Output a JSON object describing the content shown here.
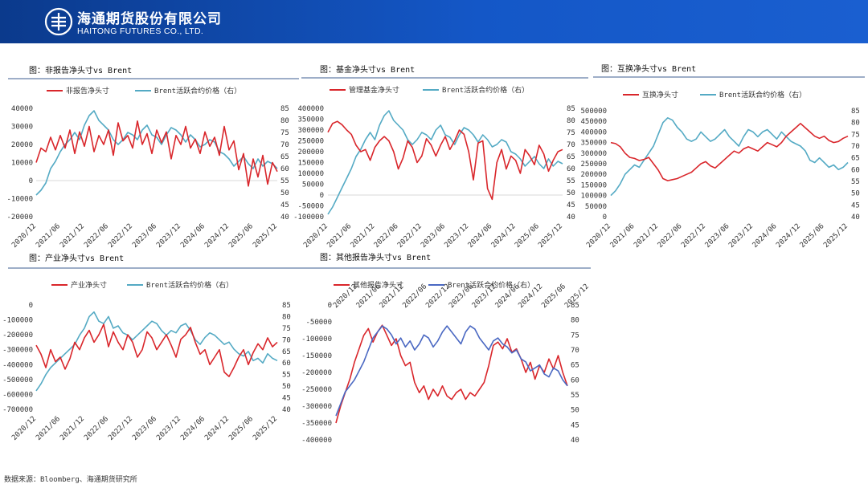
{
  "header": {
    "company_cn": "海通期货股份有限公司",
    "company_en": "HAITONG FUTURES CO., LTD."
  },
  "source_note": "数据来源：Bloomberg、海通期货研究所",
  "colors": {
    "red": "#d9262b",
    "teal": "#54aac4",
    "blue": "#4a68c2",
    "axis": "#999999",
    "divider": "#7f93b6"
  },
  "chart_data": [
    {
      "type": "line",
      "title": "图：非报告净头寸vs Brent",
      "x_ticks": [
        "2020/12",
        "2021/06",
        "2021/12",
        "2022/06",
        "2022/12",
        "2023/06",
        "2023/12",
        "2024/06",
        "2024/12",
        "2025/06",
        "2025/12"
      ],
      "left_axis": {
        "ylim": [
          -20000,
          40000
        ],
        "ticks": [
          "-20000",
          "-10000",
          "0",
          "10000",
          "20000",
          "30000",
          "40000"
        ]
      },
      "right_axis": {
        "ylim": [
          40,
          85
        ],
        "ticks": [
          "40",
          "45",
          "50",
          "55",
          "60",
          "65",
          "70",
          "75",
          "80",
          "85"
        ]
      },
      "series": [
        {
          "name": "非报告净头寸",
          "axis": "left",
          "color": "red",
          "values": [
            10000,
            18000,
            16000,
            24000,
            17000,
            25000,
            18000,
            28000,
            15000,
            27000,
            19000,
            30000,
            16000,
            25000,
            20000,
            28000,
            14000,
            32000,
            22000,
            25000,
            18000,
            33000,
            20000,
            26000,
            15000,
            28000,
            21000,
            27000,
            12000,
            25000,
            20000,
            30000,
            18000,
            23000,
            15000,
            27000,
            19000,
            24000,
            14000,
            30000,
            17000,
            22000,
            6000,
            15000,
            -3000,
            12000,
            2000,
            14000,
            -2000,
            10000,
            5000
          ]
        },
        {
          "name": "Brent活跃合约价格（右）",
          "axis": "right",
          "color": "teal",
          "values": [
            49,
            51,
            54,
            60,
            63,
            67,
            70,
            72,
            75,
            72,
            78,
            82,
            84,
            80,
            78,
            76,
            72,
            70,
            72,
            75,
            74,
            72,
            76,
            78,
            74,
            73,
            70,
            74,
            77,
            76,
            74,
            71,
            74,
            72,
            69,
            70,
            72,
            71,
            67,
            66,
            64,
            61,
            63,
            65,
            62,
            60,
            64,
            61,
            63,
            62,
            60
          ]
        }
      ]
    },
    {
      "type": "line",
      "title": "图：基金净头寸vs Brent",
      "x_ticks": [
        "2020/12",
        "2021/06",
        "2021/12",
        "2022/06",
        "2022/12",
        "2023/06",
        "2023/12",
        "2024/06",
        "2024/12",
        "2025/06",
        "2025/12"
      ],
      "left_axis": {
        "ylim": [
          -100000,
          400000
        ],
        "ticks": [
          "-100000",
          "-50000",
          "0",
          "50000",
          "100000",
          "150000",
          "200000",
          "250000",
          "300000",
          "350000",
          "400000"
        ]
      },
      "right_axis": {
        "ylim": [
          40,
          85
        ],
        "ticks": [
          "40",
          "45",
          "50",
          "55",
          "60",
          "65",
          "70",
          "75",
          "80",
          "85"
        ]
      },
      "series": [
        {
          "name": "管理基金净头寸",
          "axis": "left",
          "color": "red",
          "values": [
            290000,
            330000,
            340000,
            325000,
            300000,
            280000,
            230000,
            200000,
            210000,
            160000,
            220000,
            250000,
            270000,
            250000,
            200000,
            120000,
            170000,
            250000,
            220000,
            150000,
            180000,
            260000,
            230000,
            180000,
            230000,
            270000,
            210000,
            250000,
            300000,
            280000,
            200000,
            70000,
            240000,
            250000,
            30000,
            -20000,
            150000,
            210000,
            120000,
            180000,
            160000,
            100000,
            210000,
            180000,
            140000,
            230000,
            190000,
            110000,
            160000,
            200000,
            210000
          ]
        },
        {
          "name": "Brent活跃合约价格（右）",
          "axis": "right",
          "color": "teal",
          "values": [
            41,
            44,
            48,
            52,
            56,
            60,
            65,
            68,
            72,
            75,
            72,
            78,
            82,
            84,
            80,
            78,
            76,
            72,
            70,
            72,
            75,
            74,
            72,
            76,
            78,
            74,
            73,
            70,
            74,
            77,
            76,
            74,
            71,
            74,
            72,
            69,
            70,
            72,
            71,
            67,
            66,
            64,
            61,
            63,
            65,
            62,
            60,
            64,
            61,
            63,
            62
          ]
        }
      ]
    },
    {
      "type": "line",
      "title": "图：互换净头寸vs Brent",
      "x_ticks": [
        "2020/12",
        "2021/06",
        "2021/12",
        "2022/06",
        "2022/12",
        "2023/06",
        "2023/12",
        "2024/06",
        "2024/12",
        "2025/06",
        "2025/12"
      ],
      "left_axis": {
        "ylim": [
          0,
          500000
        ],
        "ticks": [
          "0",
          "50000",
          "100000",
          "150000",
          "200000",
          "250000",
          "300000",
          "350000",
          "400000",
          "450000",
          "500000"
        ]
      },
      "right_axis": {
        "ylim": [
          40,
          85
        ],
        "ticks": [
          "40",
          "45",
          "50",
          "55",
          "60",
          "65",
          "70",
          "75",
          "80",
          "85"
        ]
      },
      "series": [
        {
          "name": "互换净头寸",
          "axis": "left",
          "color": "red",
          "values": [
            350000,
            345000,
            330000,
            300000,
            280000,
            275000,
            265000,
            270000,
            280000,
            250000,
            220000,
            180000,
            170000,
            175000,
            180000,
            190000,
            200000,
            210000,
            230000,
            250000,
            260000,
            240000,
            230000,
            250000,
            270000,
            290000,
            310000,
            300000,
            320000,
            330000,
            320000,
            310000,
            330000,
            350000,
            340000,
            330000,
            350000,
            380000,
            400000,
            420000,
            440000,
            420000,
            400000,
            380000,
            370000,
            380000,
            360000,
            350000,
            355000,
            370000,
            380000
          ]
        },
        {
          "name": "Brent活跃合约价格（右）",
          "axis": "right",
          "color": "teal",
          "values": [
            49,
            51,
            54,
            58,
            60,
            62,
            61,
            64,
            67,
            70,
            75,
            80,
            82,
            81,
            78,
            76,
            73,
            72,
            73,
            76,
            74,
            72,
            73,
            75,
            77,
            74,
            72,
            70,
            74,
            77,
            76,
            74,
            76,
            77,
            75,
            73,
            76,
            74,
            72,
            71,
            70,
            68,
            64,
            63,
            65,
            63,
            61,
            62,
            60,
            61,
            63
          ]
        }
      ]
    },
    {
      "type": "line",
      "title": "图：产业净头寸vs Brent",
      "x_ticks": [
        "2020/12",
        "2021/06",
        "2021/12",
        "2022/06",
        "2022/12",
        "2023/06",
        "2023/12",
        "2024/06",
        "2024/12",
        "2025/06",
        "2025/12"
      ],
      "left_axis": {
        "ylim": [
          -700000,
          0
        ],
        "ticks": [
          "-700000",
          "-600000",
          "-500000",
          "-400000",
          "-300000",
          "-200000",
          "-100000",
          "0"
        ]
      },
      "right_axis": {
        "ylim": [
          40,
          85
        ],
        "ticks": [
          "40",
          "45",
          "50",
          "55",
          "60",
          "65",
          "70",
          "75",
          "80",
          "85"
        ]
      },
      "series": [
        {
          "name": "产业净头寸",
          "axis": "left",
          "color": "red",
          "values": [
            -270000,
            -330000,
            -420000,
            -300000,
            -380000,
            -350000,
            -430000,
            -360000,
            -250000,
            -300000,
            -220000,
            -170000,
            -250000,
            -200000,
            -130000,
            -280000,
            -180000,
            -250000,
            -300000,
            -200000,
            -250000,
            -350000,
            -300000,
            -180000,
            -220000,
            -300000,
            -250000,
            -200000,
            -270000,
            -350000,
            -230000,
            -200000,
            -150000,
            -250000,
            -330000,
            -300000,
            -400000,
            -350000,
            -300000,
            -450000,
            -480000,
            -420000,
            -350000,
            -300000,
            -400000,
            -320000,
            -260000,
            -300000,
            -220000,
            -280000,
            -250000
          ]
        },
        {
          "name": "Brent活跃合约价格（右）",
          "axis": "right",
          "color": "teal",
          "values": [
            48,
            51,
            55,
            58,
            60,
            62,
            64,
            66,
            68,
            72,
            75,
            80,
            82,
            78,
            77,
            80,
            75,
            76,
            73,
            72,
            70,
            72,
            74,
            76,
            78,
            77,
            74,
            72,
            74,
            73,
            76,
            77,
            74,
            70,
            68,
            71,
            73,
            72,
            70,
            68,
            69,
            66,
            64,
            63,
            65,
            61,
            62,
            60,
            64,
            62,
            61
          ]
        }
      ]
    },
    {
      "type": "line",
      "title": "图：其他报告净头寸vs Brent",
      "x_ticks": [
        "2020/12",
        "2021/06",
        "2021/12",
        "2022/06",
        "2022/12",
        "2023/06",
        "2023/12",
        "2024/06",
        "2024/12",
        "2025/06",
        "2025/12"
      ],
      "left_axis": {
        "ylim": [
          -400000,
          0
        ],
        "ticks": [
          "-400000",
          "-350000",
          "-300000",
          "-250000",
          "-200000",
          "-150000",
          "-100000",
          "-50000",
          "0"
        ]
      },
      "right_axis": {
        "ylim": [
          40,
          85
        ],
        "ticks": [
          "40",
          "45",
          "50",
          "55",
          "60",
          "65",
          "70",
          "75",
          "80",
          "85"
        ]
      },
      "series": [
        {
          "name": "其他报告净头寸",
          "axis": "left",
          "color": "red",
          "values": [
            -350000,
            -300000,
            -260000,
            -220000,
            -170000,
            -130000,
            -90000,
            -70000,
            -110000,
            -80000,
            -60000,
            -90000,
            -120000,
            -100000,
            -150000,
            -180000,
            -170000,
            -230000,
            -260000,
            -240000,
            -280000,
            -250000,
            -270000,
            -240000,
            -270000,
            -280000,
            -260000,
            -250000,
            -280000,
            -260000,
            -270000,
            -250000,
            -230000,
            -180000,
            -120000,
            -110000,
            -130000,
            -100000,
            -140000,
            -130000,
            -160000,
            -200000,
            -170000,
            -220000,
            -180000,
            -200000,
            -160000,
            -190000,
            -150000,
            -200000,
            -240000
          ]
        },
        {
          "name": "Brent活跃合约价格（右）",
          "axis": "right",
          "color": "blue",
          "values": [
            48,
            52,
            56,
            58,
            60,
            63,
            66,
            70,
            74,
            76,
            78,
            77,
            75,
            72,
            74,
            71,
            73,
            70,
            72,
            75,
            74,
            71,
            73,
            76,
            78,
            76,
            74,
            72,
            76,
            78,
            77,
            74,
            72,
            70,
            73,
            74,
            72,
            71,
            69,
            70,
            67,
            66,
            63,
            64,
            65,
            62,
            61,
            64,
            63,
            60,
            58
          ]
        }
      ]
    }
  ]
}
